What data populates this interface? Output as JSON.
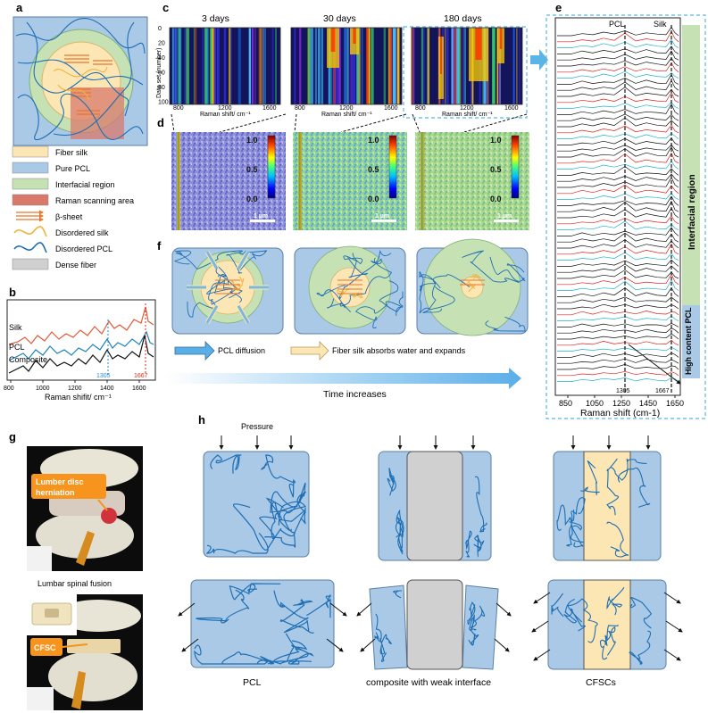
{
  "panels": {
    "a": {
      "label": "a",
      "legend": [
        {
          "text": "Fiber silk",
          "color": "#fbe6b4",
          "kind": "box"
        },
        {
          "text": "Pure PCL",
          "color": "#a9c9e6",
          "kind": "box"
        },
        {
          "text": "Interfacial region",
          "color": "#c6e1b4",
          "kind": "box"
        },
        {
          "text": "Raman scanning area",
          "color": "#d9796c",
          "kind": "box"
        },
        {
          "text": "β-sheet",
          "color": "#e9762b",
          "kind": "arrows"
        },
        {
          "text": "Disordered silk",
          "color": "#f2b23a",
          "kind": "wave"
        },
        {
          "text": "Disordered PCL",
          "color": "#1f6fb5",
          "kind": "wave"
        },
        {
          "text": "Dense fiber",
          "color": "#d0d0d0",
          "kind": "box"
        }
      ]
    },
    "b": {
      "label": "b",
      "series_labels": [
        "Silk",
        "PCL",
        "Composite"
      ],
      "annot_1305": "1305",
      "annot_1667": "1667",
      "xlabel": "Raman shifit/ cm⁻¹",
      "xticks": [
        "800",
        "1000",
        "1200",
        "1400",
        "1600"
      ]
    },
    "c": {
      "label": "c",
      "titles": [
        "3 days",
        "30 days",
        "180 days"
      ],
      "ylabel": "Data set (number)",
      "yticks": [
        "0",
        "20",
        "40",
        "60",
        "80",
        "100"
      ],
      "xticks": [
        "800",
        "1200",
        "1600"
      ],
      "xlabel": "Raman shift/ cm⁻¹"
    },
    "d": {
      "label": "d",
      "colorbar_ticks": [
        "1.0",
        "0.5",
        "0.0"
      ],
      "scale_bar": "1 µm"
    },
    "e": {
      "label": "e",
      "header_pcl": "PCL",
      "header_silk": "Silk",
      "band_interfacial": "Interfacial region",
      "band_pcl": "High content PCL",
      "annot_1305": "1305",
      "annot_1667": "1667",
      "xticks": [
        "850",
        "1050",
        "1250",
        "1450",
        "1650"
      ],
      "xlabel": "Raman shift (cm-1)"
    },
    "f": {
      "label": "f",
      "legend_pcl": "PCL diffusion",
      "legend_silk": "Fiber silk absorbs water and expands",
      "time_label": "Time increases"
    },
    "g": {
      "label": "g",
      "callout_top": "Lumber disc herniation",
      "caption_top": "Lumbar spinal fusion",
      "callout_bottom": "CFSC"
    },
    "h": {
      "label": "h",
      "pressure": "Pressure",
      "captions": [
        "PCL",
        "composite with weak interface",
        "CFSCs"
      ]
    }
  },
  "colors": {
    "pcl": "#a9c9e6",
    "pcl_line": "#1f6fb5",
    "silk": "#fbe6b4",
    "interface": "#c6e1b4",
    "dense": "#d0d0d0",
    "orange": "#f7941d",
    "arrow_blue": "#5aaee8"
  }
}
